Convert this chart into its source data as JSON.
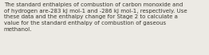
{
  "text": "The standard enthalpies of combustion of carbon monoxide and\nof hydrogen are-283 kJ mol-1 and -286 kJ mol-1, respectively. Use\nthese data and the enthalpy change for Stage 2 to calculate a\nvalue for the standard enthalpy of combustion of gaseous\nmethanol.",
  "background_color": "#eceae4",
  "text_color": "#3a3830",
  "font_size": 5.05,
  "figwidth": 2.62,
  "figheight": 0.69,
  "dpi": 100
}
